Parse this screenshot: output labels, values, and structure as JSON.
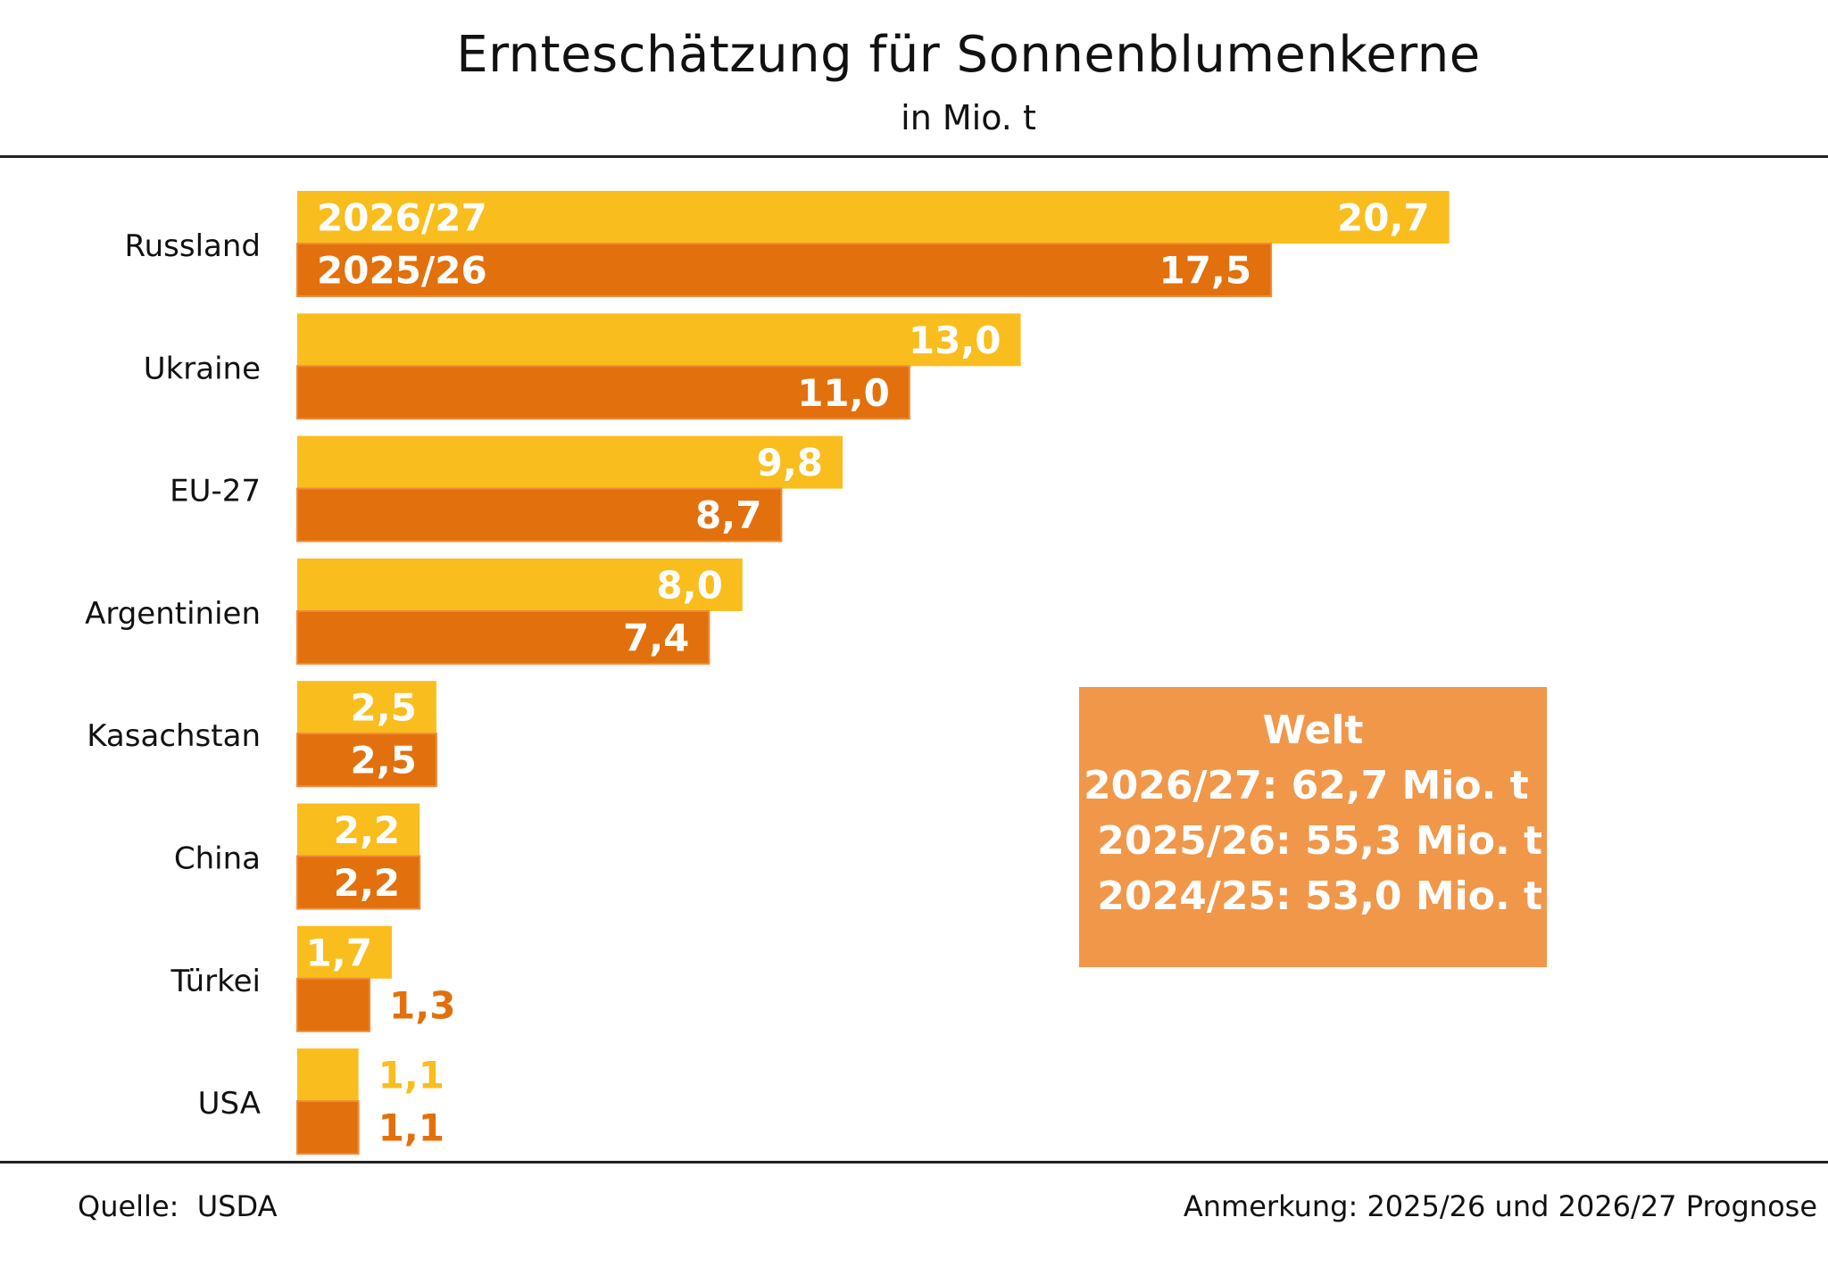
{
  "header": {
    "title": "Ernteschätzung für Sonnenblumenkerne",
    "subtitle": "in Mio. t"
  },
  "chart_data": {
    "type": "bar",
    "orientation": "horizontal",
    "categories": [
      "Russland",
      "Ukraine",
      "EU-27",
      "Argentinien",
      "Kasachstan",
      "China",
      "Türkei",
      "USA"
    ],
    "series": [
      {
        "name": "2026/27",
        "color": "#f9bd1d",
        "values": [
          20.7,
          13.0,
          9.8,
          8.0,
          2.5,
          2.2,
          1.7,
          1.1
        ],
        "labels": [
          "20,7",
          "13,0",
          "9,8",
          "8,0",
          "2,5",
          "2,2",
          "1,7",
          "1,1"
        ]
      },
      {
        "name": "2025/26",
        "color": "#e2700c",
        "values": [
          17.5,
          11.0,
          8.7,
          7.4,
          2.5,
          2.2,
          1.3,
          1.1
        ],
        "labels": [
          "17,5",
          "11,0",
          "8,7",
          "7,4",
          "2,5",
          "2,2",
          "1,3",
          "1,1"
        ]
      }
    ],
    "legend_placement": "inside first category bars",
    "xlim": [
      0,
      21
    ],
    "grid": false
  },
  "welt": {
    "heading": "Welt",
    "lines": [
      "2026/27: 62,7 Mio. t ",
      " 2025/26: 55,3 Mio. t",
      " 2024/25: 53,0 Mio. t"
    ],
    "color": "#f0974a"
  },
  "footer": {
    "source": "Quelle:  USDA",
    "note": "Anmerkung: 2025/26 und 2026/27 Prognose"
  }
}
